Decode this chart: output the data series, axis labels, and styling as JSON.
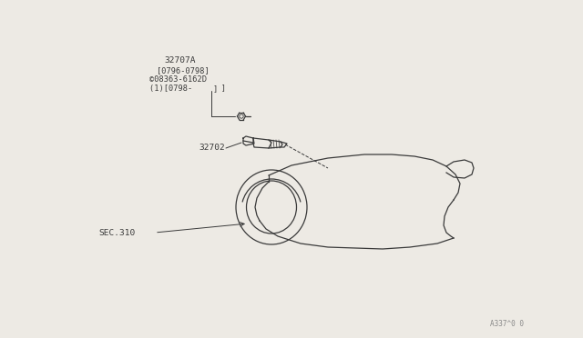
{
  "bg_color": "#edeae4",
  "line_color": "#3a3a3a",
  "text_color": "#3a3a3a",
  "fig_width": 6.4,
  "fig_height": 3.72,
  "label_32707A": "32707A",
  "label_32707A_sub1": "[0796-0798]",
  "label_32707A_sub2": "©08363-6162D",
  "label_32707A_sub3": "(1)[0798-      ]",
  "label_bracket_end": "]",
  "label_32702": "32702",
  "label_sec310": "SEC.310",
  "label_watermark": "A337^0 0"
}
